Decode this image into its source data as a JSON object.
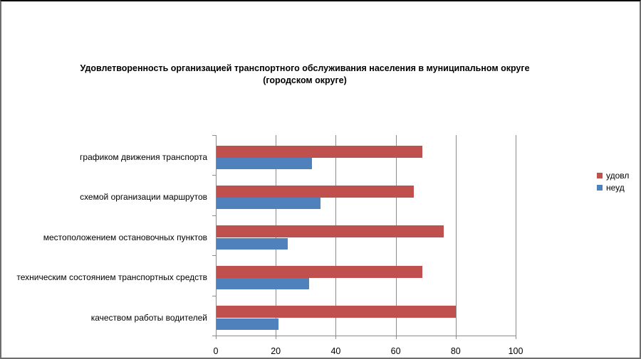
{
  "chart_data": {
    "type": "bar",
    "orientation": "horizontal",
    "title_lines": [
      "Удовлетворенность организацией транспортного обслуживания населения в муниципальном округе",
      "(городском округе)"
    ],
    "categories": [
      "графиком движения транспорта",
      "схемой организации маршрутов",
      "местоположением остановочных пунктов",
      "техническим состоянием транспортных средств",
      "качеством работы водителей"
    ],
    "series": [
      {
        "name": "удовл",
        "color": "#C0504D",
        "values": [
          69,
          66,
          76,
          69,
          80
        ]
      },
      {
        "name": "неуд",
        "color": "#4F81BD",
        "values": [
          32,
          35,
          24,
          31,
          21
        ]
      }
    ],
    "x_ticks": [
      0,
      20,
      40,
      60,
      80,
      100
    ],
    "xlim": [
      0,
      100
    ],
    "grid": "vertical-gridlines",
    "legend_position": "right"
  },
  "colors": {
    "axis": "#8C8C8C",
    "grid": "#8C8C8C",
    "text": "#000000",
    "background": "#FFFFFF"
  }
}
